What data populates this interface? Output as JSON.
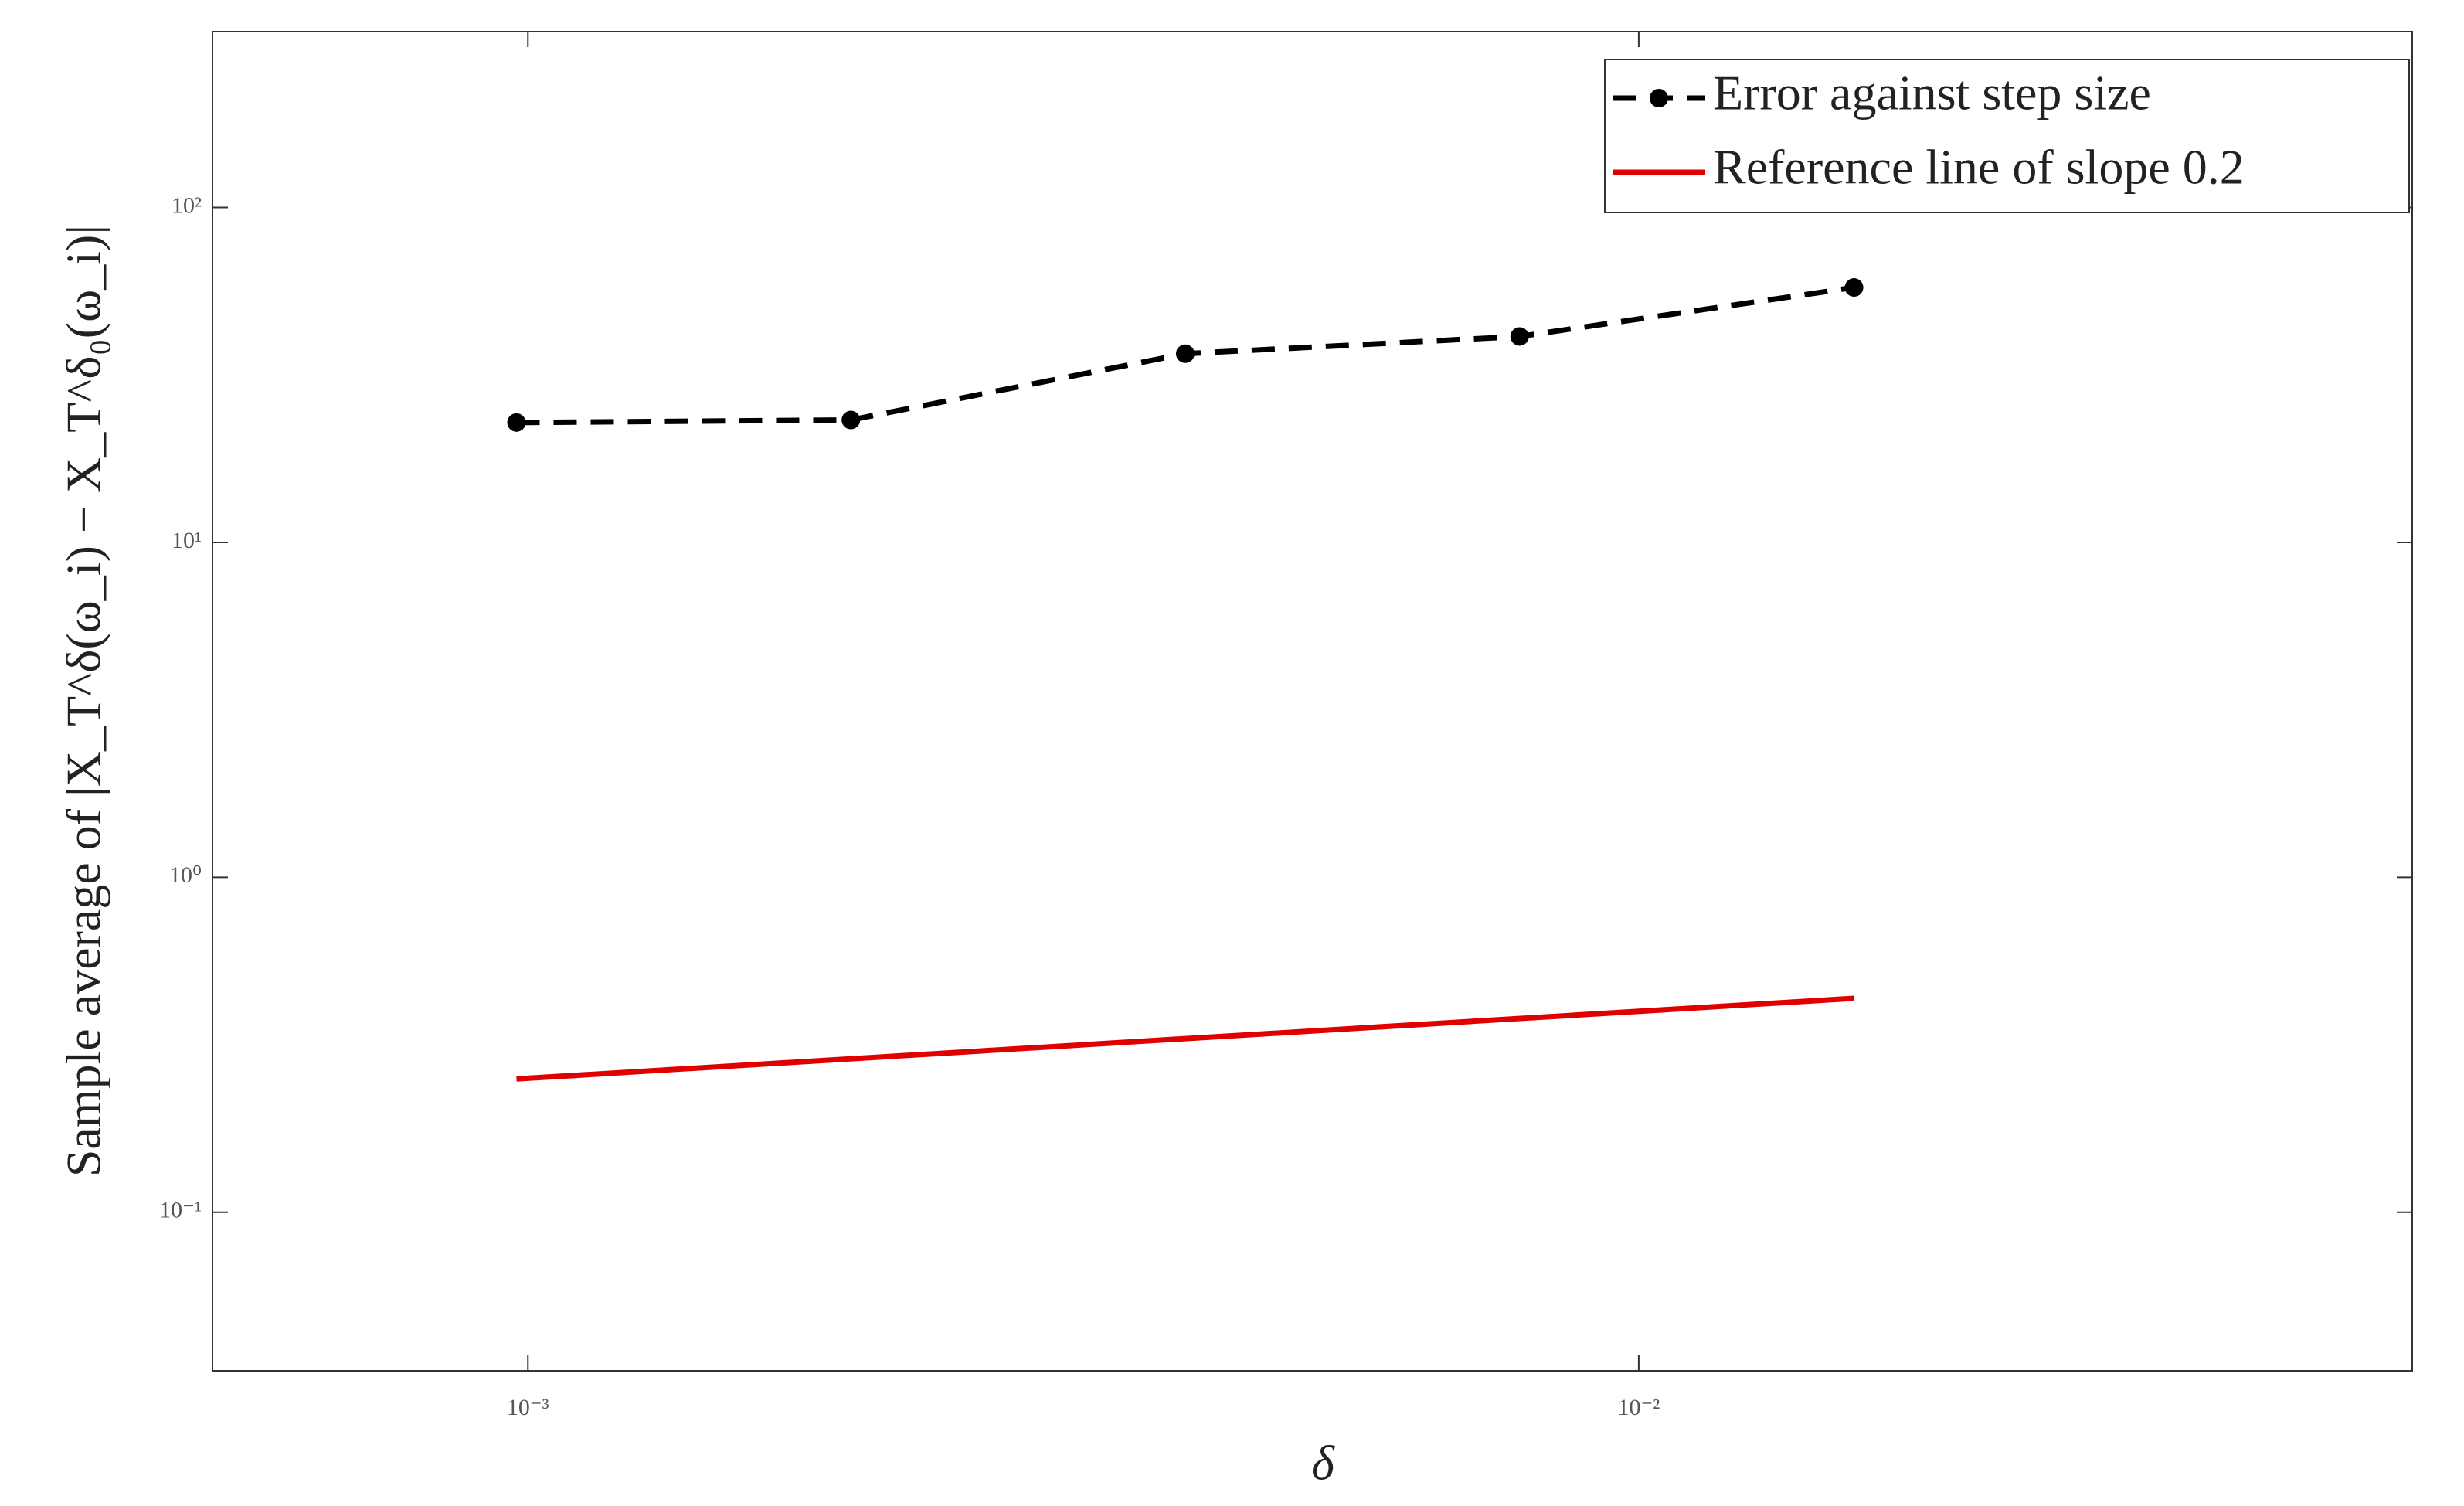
{
  "chart_data": {
    "type": "line",
    "xlabel": "δ",
    "ylabel": "Sample average of |X_T^δ(ω_i) − X_T^δ₀(ω_i)|",
    "log_x": true,
    "log_y": true,
    "legend": "upper right",
    "x": [
      0.0009765625,
      0.001953125,
      0.00390625,
      0.0078125,
      0.015625
    ],
    "series": [
      {
        "name": "Error against step size",
        "color": "#000000",
        "style": "dashed",
        "marker": "o",
        "values": [
          22.8,
          23.2,
          36.6,
          41.2,
          57.7
        ]
      },
      {
        "name": "Reference line of slope 0.2",
        "color": "#e00000",
        "style": "solid",
        "x": [
          0.0009765625,
          0.015625
        ],
        "values": [
          0.25,
          0.435
        ]
      }
    ],
    "xlim": [
      0.00052,
      0.0497
    ],
    "ylim": [
      0.0336,
      335
    ],
    "xticks": [
      {
        "value": 0.001,
        "label": "10⁻³"
      },
      {
        "value": 0.01,
        "label": "10⁻²"
      }
    ],
    "yticks": [
      {
        "value": 0.1,
        "label": "10⁻¹"
      },
      {
        "value": 1,
        "label": "10⁰"
      },
      {
        "value": 10,
        "label": "10¹"
      },
      {
        "value": 100,
        "label": "10²"
      }
    ]
  }
}
